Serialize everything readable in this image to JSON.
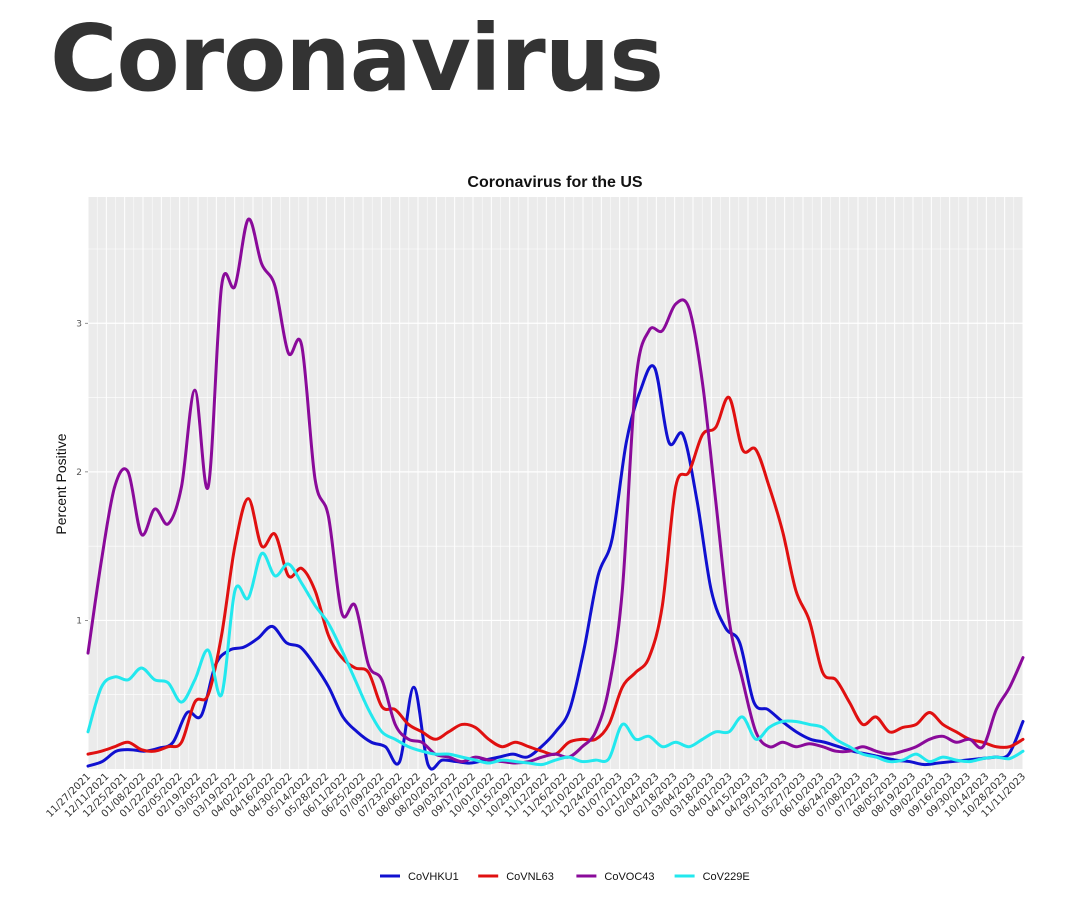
{
  "page": {
    "title": "Coronavirus"
  },
  "chart_data": {
    "type": "line",
    "title": "Coronavirus for the US",
    "xlabel": "",
    "ylabel": "Percent Positive",
    "ylim": [
      0,
      3.85
    ],
    "y_ticks": [
      1,
      2,
      3
    ],
    "grid": true,
    "legend_position": "bottom",
    "x_tick_labels": [
      "11/27/2021",
      "12/11/2021",
      "12/25/2021",
      "01/08/2022",
      "01/22/2022",
      "02/05/2022",
      "02/19/2022",
      "03/05/2022",
      "03/19/2022",
      "04/02/2022",
      "04/16/2022",
      "04/30/2022",
      "05/14/2022",
      "05/28/2022",
      "06/11/2022",
      "06/25/2022",
      "07/09/2022",
      "07/23/2022",
      "08/06/2022",
      "08/20/2022",
      "09/03/2022",
      "09/17/2022",
      "10/01/2022",
      "10/15/2022",
      "10/29/2022",
      "11/12/2022",
      "11/26/2022",
      "12/10/2022",
      "12/24/2022",
      "01/07/2023",
      "01/21/2023",
      "02/04/2023",
      "02/18/2023",
      "03/04/2023",
      "03/18/2023",
      "04/01/2023",
      "04/15/2023",
      "04/29/2023",
      "05/13/2023",
      "05/27/2023",
      "06/10/2023",
      "06/24/2023",
      "07/08/2023",
      "07/22/2023",
      "08/05/2023",
      "08/19/2023",
      "09/02/2023",
      "09/16/2023",
      "09/30/2023",
      "10/14/2023",
      "10/28/2023",
      "11/11/2023"
    ],
    "series": [
      {
        "name": "CoVHKU1",
        "color": "#1010d0",
        "values": [
          0.02,
          0.05,
          0.12,
          0.13,
          0.12,
          0.14,
          0.18,
          0.38,
          0.36,
          0.7,
          0.8,
          0.82,
          0.88,
          0.96,
          0.85,
          0.82,
          0.7,
          0.55,
          0.35,
          0.25,
          0.18,
          0.15,
          0.05,
          0.55,
          0.03,
          0.06,
          0.05,
          0.04,
          0.06,
          0.08,
          0.1,
          0.08,
          0.15,
          0.25,
          0.4,
          0.8,
          1.3,
          1.55,
          2.2,
          2.55,
          2.7,
          2.2,
          2.25,
          1.8,
          1.2,
          0.95,
          0.85,
          0.45,
          0.4,
          0.32,
          0.25,
          0.2,
          0.18,
          0.15,
          0.12,
          0.1,
          0.08,
          0.06,
          0.05,
          0.03,
          0.04,
          0.05,
          0.06,
          0.07,
          0.08,
          0.1,
          0.32
        ]
      },
      {
        "name": "CoVNL63",
        "color": "#e01010",
        "values": [
          0.1,
          0.12,
          0.15,
          0.18,
          0.13,
          0.12,
          0.15,
          0.18,
          0.45,
          0.5,
          0.9,
          1.5,
          1.82,
          1.5,
          1.58,
          1.3,
          1.35,
          1.2,
          0.9,
          0.75,
          0.68,
          0.65,
          0.42,
          0.4,
          0.3,
          0.25,
          0.2,
          0.25,
          0.3,
          0.28,
          0.2,
          0.15,
          0.18,
          0.15,
          0.12,
          0.1,
          0.18,
          0.2,
          0.2,
          0.3,
          0.55,
          0.65,
          0.75,
          1.1,
          1.9,
          2.0,
          2.25,
          2.3,
          2.5,
          2.15,
          2.15,
          1.9,
          1.6,
          1.2,
          1.0,
          0.65,
          0.6,
          0.45,
          0.3,
          0.35,
          0.25,
          0.28,
          0.3,
          0.38,
          0.3,
          0.25,
          0.2,
          0.18,
          0.15,
          0.15,
          0.2
        ]
      },
      {
        "name": "CoVOC43",
        "color": "#8a0a9a",
        "values": [
          0.78,
          1.4,
          1.9,
          2.0,
          1.58,
          1.75,
          1.65,
          1.9,
          2.55,
          1.9,
          3.25,
          3.25,
          3.7,
          3.4,
          3.25,
          2.8,
          2.85,
          1.95,
          1.7,
          1.05,
          1.1,
          0.7,
          0.6,
          0.3,
          0.2,
          0.18,
          0.1,
          0.08,
          0.05,
          0.08,
          0.06,
          0.05,
          0.04,
          0.05,
          0.08,
          0.1,
          0.08,
          0.15,
          0.25,
          0.55,
          1.2,
          2.6,
          2.95,
          2.95,
          3.13,
          3.1,
          2.6,
          1.8,
          1.0,
          0.6,
          0.25,
          0.15,
          0.18,
          0.15,
          0.17,
          0.15,
          0.12,
          0.12,
          0.15,
          0.12,
          0.1,
          0.12,
          0.15,
          0.2,
          0.22,
          0.18,
          0.2,
          0.15,
          0.4,
          0.55,
          0.75
        ]
      },
      {
        "name": "CoV229E",
        "color": "#22e8ee",
        "values": [
          0.25,
          0.55,
          0.62,
          0.6,
          0.68,
          0.6,
          0.58,
          0.45,
          0.6,
          0.8,
          0.5,
          1.2,
          1.15,
          1.45,
          1.3,
          1.38,
          1.25,
          1.1,
          0.98,
          0.8,
          0.6,
          0.4,
          0.25,
          0.2,
          0.15,
          0.12,
          0.1,
          0.1,
          0.08,
          0.06,
          0.04,
          0.06,
          0.05,
          0.04,
          0.03,
          0.06,
          0.08,
          0.05,
          0.06,
          0.07,
          0.3,
          0.2,
          0.22,
          0.15,
          0.18,
          0.15,
          0.2,
          0.25,
          0.25,
          0.35,
          0.2,
          0.28,
          0.32,
          0.32,
          0.3,
          0.28,
          0.2,
          0.15,
          0.1,
          0.08,
          0.05,
          0.06,
          0.1,
          0.05,
          0.08,
          0.06,
          0.05,
          0.07,
          0.08,
          0.07,
          0.12
        ]
      }
    ]
  }
}
